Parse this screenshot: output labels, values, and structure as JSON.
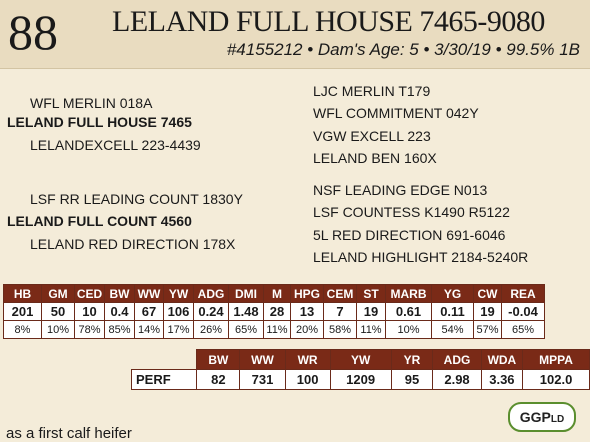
{
  "header": {
    "lot": "88",
    "name": "LELAND FULL HOUSE 7465-9080",
    "meta": "#4155212 • Dam's Age: 5 • 3/30/19 • 99.5% 1B"
  },
  "pedigree": {
    "sire_sire": "WFL MERLIN 018A",
    "sire": "LELAND FULL HOUSE 7465",
    "sire_dam": "LELANDEXCELL 223-4439",
    "dam_sire": "LSF RR LEADING COUNT 1830Y",
    "dam": "LELAND FULL COUNT 4560",
    "dam_dam": "LELAND RED DIRECTION 178X",
    "right": [
      "LJC MERLIN T179",
      "WFL COMMITMENT 042Y",
      "VGW EXCELL 223",
      "LELAND BEN 160X",
      "NSF LEADING EDGE N013",
      "LSF COUNTESS K1490 R5122",
      "5L RED DIRECTION 691-6046",
      "LELAND HIGHLIGHT 2184-5240R"
    ]
  },
  "epd": {
    "headers": [
      "HB",
      "GM",
      "CED",
      "BW",
      "WW",
      "YW",
      "ADG",
      "DMI",
      "M",
      "HPG",
      "CEM",
      "ST",
      "MARB",
      "YG",
      "CW",
      "REA"
    ],
    "values": [
      "201",
      "50",
      "10",
      "0.4",
      "67",
      "106",
      "0.24",
      "1.48",
      "28",
      "13",
      "7",
      "19",
      "0.61",
      "0.11",
      "19",
      "-0.04"
    ],
    "percentiles": [
      "8%",
      "10%",
      "78%",
      "85%",
      "14%",
      "17%",
      "26%",
      "65%",
      "11%",
      "20%",
      "58%",
      "11%",
      "10%",
      "54%",
      "57%",
      "65%"
    ]
  },
  "perf": {
    "headers": [
      "BW",
      "WW",
      "WR",
      "YW",
      "YR",
      "ADG",
      "WDA",
      "MPPA"
    ],
    "label": "PERF",
    "values": [
      "82",
      "731",
      "100",
      "1209",
      "95",
      "2.98",
      "3.36",
      "102.0"
    ]
  },
  "logo": {
    "main": "GGP",
    "suffix": "LD",
    "color": "#5a8e2e"
  },
  "footer": {
    "text": "as a first calf heifer"
  },
  "colors": {
    "header_bg": "#e9dcc0",
    "table_header": "#7a2a17",
    "background": "#f4ecd9"
  }
}
